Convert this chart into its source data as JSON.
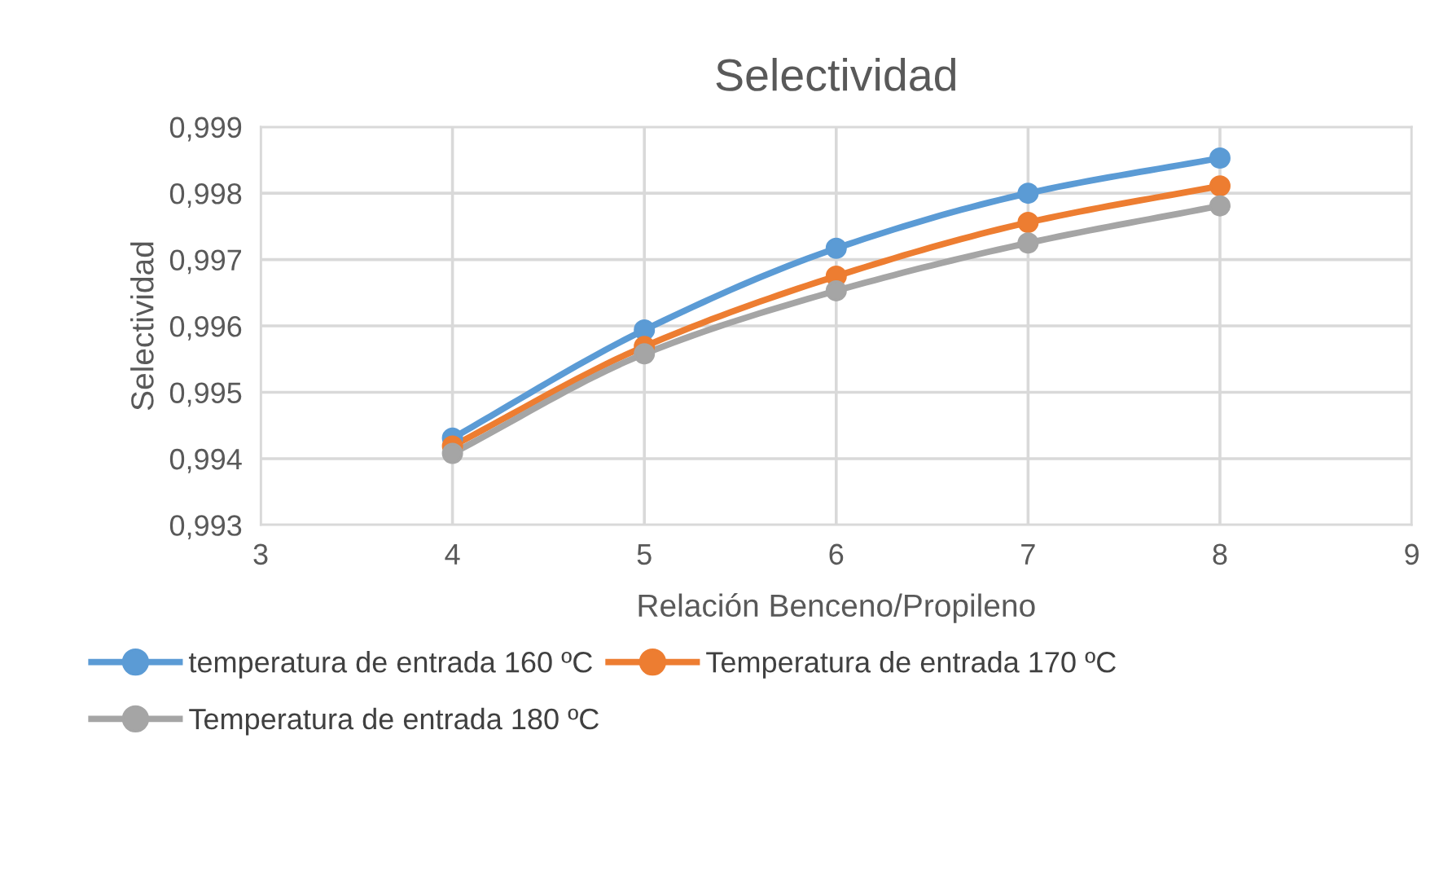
{
  "chart_data": {
    "type": "line",
    "title": "Selectividad",
    "xlabel": "Relación Benceno/Propileno",
    "ylabel": "Selectividad",
    "x": [
      4,
      5,
      6,
      7,
      8
    ],
    "series": [
      {
        "name": "temperatura de entrada 160 ºC",
        "color": "#5b9bd5",
        "values": [
          0.99431,
          0.99594,
          0.99717,
          0.998,
          0.99853
        ]
      },
      {
        "name": "Temperatura de entrada 170 ºC",
        "color": "#ed7d31",
        "values": [
          0.99419,
          0.99569,
          0.99675,
          0.99756,
          0.99811
        ]
      },
      {
        "name": "Temperatura de entrada 180 ºC",
        "color": "#a5a5a5",
        "values": [
          0.99408,
          0.99558,
          0.99653,
          0.99725,
          0.99781
        ]
      }
    ],
    "xlim": [
      3,
      9
    ],
    "xticks": [
      3,
      4,
      5,
      6,
      7,
      8,
      9
    ],
    "ylim": [
      0.993,
      0.999
    ],
    "yticks": [
      {
        "value": 0.993,
        "label": "0,993"
      },
      {
        "value": 0.994,
        "label": "0,994"
      },
      {
        "value": 0.995,
        "label": "0,995"
      },
      {
        "value": 0.996,
        "label": "0,996"
      },
      {
        "value": 0.997,
        "label": "0,997"
      },
      {
        "value": 0.998,
        "label": "0,998"
      },
      {
        "value": 0.999,
        "label": "0,999"
      }
    ],
    "grid": true,
    "legend": "bottom",
    "marker": "circle",
    "line_style": "solid"
  }
}
